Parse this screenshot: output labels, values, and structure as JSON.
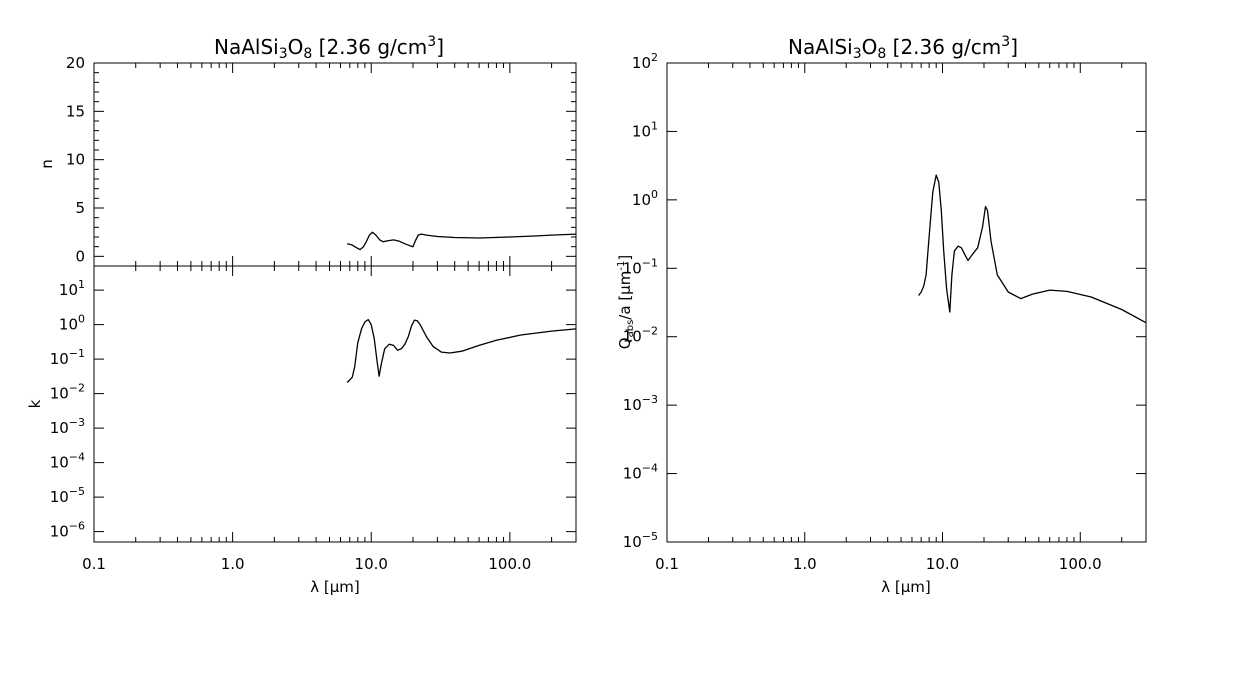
{
  "chart_data": [
    {
      "type": "line",
      "panel": "n",
      "title": "NaAlSi3O8 [2.36 g/cm3]",
      "title_parts": {
        "pre": "NaAlSi",
        "sub1": "3",
        "mid": "O",
        "sub2": "8",
        "post": " [2.36 g/cm",
        "sup": "3",
        "end": "]"
      },
      "xlabel": "",
      "ylabel": "n",
      "xscale": "log",
      "xlim": [
        0.1,
        300
      ],
      "ylim": [
        -1,
        20
      ],
      "yticks": [
        "0",
        "5",
        "10",
        "15",
        "20"
      ],
      "ytick_values": [
        0,
        5,
        10,
        15,
        20
      ],
      "x": [
        6.7,
        7.2,
        7.8,
        8.3,
        8.8,
        9.2,
        9.7,
        10.2,
        10.8,
        11.5,
        12.2,
        13.0,
        14.5,
        16.0,
        17.5,
        19.0,
        20.0,
        20.8,
        21.8,
        23.0,
        25,
        30,
        40,
        60,
        100,
        150,
        200,
        300
      ],
      "y": [
        1.3,
        1.2,
        0.9,
        0.7,
        1.0,
        1.5,
        2.2,
        2.5,
        2.2,
        1.7,
        1.5,
        1.6,
        1.7,
        1.55,
        1.3,
        1.1,
        1.0,
        1.6,
        2.2,
        2.3,
        2.2,
        2.05,
        1.95,
        1.9,
        2.0,
        2.1,
        2.2,
        2.3
      ]
    },
    {
      "type": "line",
      "panel": "k",
      "xlabel": "λ [μm]",
      "ylabel": "k",
      "xscale": "log",
      "yscale": "log",
      "xlim": [
        0.1,
        300
      ],
      "ylim": [
        5e-07,
        50
      ],
      "xticks": [
        "0.1",
        "1.0",
        "10.0",
        "100.0"
      ],
      "xtick_values": [
        0.1,
        1,
        10,
        100
      ],
      "yticks": [
        "10^1",
        "10^0",
        "10^-1",
        "10^-2",
        "10^-3",
        "10^-4",
        "10^-5",
        "10^-6"
      ],
      "ytick_values": [
        10,
        1,
        0.1,
        0.01,
        0.001,
        0.0001,
        1e-05,
        1e-06
      ],
      "x": [
        6.7,
        7.0,
        7.3,
        7.6,
        8.0,
        8.5,
        9.0,
        9.5,
        10.0,
        10.5,
        11.0,
        11.4,
        11.8,
        12.5,
        13.5,
        14.5,
        15.5,
        16.5,
        17.5,
        18.5,
        19.5,
        20.5,
        21.5,
        22.5,
        25,
        28,
        32,
        37,
        45,
        60,
        80,
        120,
        200,
        300
      ],
      "y": [
        0.021,
        0.025,
        0.03,
        0.06,
        0.3,
        0.75,
        1.2,
        1.4,
        1.0,
        0.4,
        0.09,
        0.032,
        0.07,
        0.2,
        0.27,
        0.25,
        0.18,
        0.2,
        0.27,
        0.45,
        0.9,
        1.35,
        1.3,
        1.0,
        0.45,
        0.23,
        0.16,
        0.15,
        0.17,
        0.25,
        0.35,
        0.5,
        0.65,
        0.75
      ]
    },
    {
      "type": "line",
      "panel": "Qabs/a",
      "title": "NaAlSi3O8 [2.36 g/cm3]",
      "title_parts": {
        "pre": "NaAlSi",
        "sub1": "3",
        "mid": "O",
        "sub2": "8",
        "post": " [2.36 g/cm",
        "sup": "3",
        "end": "]"
      },
      "xlabel": "λ [μm]",
      "ylabel": "Qabs/a [μm-1]",
      "ylabel_parts": {
        "q": "Q",
        "sub": "abs",
        "mid": "/a [",
        "mu": "μ",
        "m": "m",
        "sup": "-1",
        "end": "]"
      },
      "xscale": "log",
      "yscale": "log",
      "xlim": [
        0.1,
        300
      ],
      "ylim": [
        1e-05,
        100
      ],
      "xticks": [
        "0.1",
        "1.0",
        "10.0",
        "100.0"
      ],
      "xtick_values": [
        0.1,
        1,
        10,
        100
      ],
      "yticks": [
        "10^2",
        "10^1",
        "10^0",
        "10^-1",
        "10^-2",
        "10^-3",
        "10^-4",
        "10^-5"
      ],
      "ytick_values": [
        100,
        10,
        1,
        0.1,
        0.01,
        0.001,
        0.0001,
        1e-05
      ],
      "x": [
        6.7,
        7.0,
        7.3,
        7.6,
        8.0,
        8.5,
        9.0,
        9.4,
        9.8,
        10.2,
        10.7,
        11.3,
        11.7,
        12.2,
        13.0,
        13.7,
        14.5,
        15.3,
        16.5,
        18.0,
        19.5,
        20.5,
        21.2,
        22.5,
        25,
        30,
        37,
        45,
        60,
        80,
        120,
        200,
        300
      ],
      "y": [
        0.04,
        0.045,
        0.055,
        0.08,
        0.3,
        1.3,
        2.3,
        1.8,
        0.7,
        0.18,
        0.05,
        0.023,
        0.08,
        0.18,
        0.21,
        0.2,
        0.16,
        0.13,
        0.16,
        0.2,
        0.4,
        0.8,
        0.7,
        0.25,
        0.08,
        0.045,
        0.036,
        0.042,
        0.048,
        0.046,
        0.038,
        0.025,
        0.016
      ]
    }
  ]
}
